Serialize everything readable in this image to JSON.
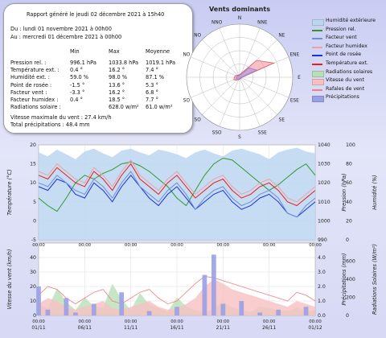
{
  "summary": {
    "report_title": "Rapport généré le jeudi 02 décembre 2021 à 15h40",
    "period_from": "Du : lundi 01 novembre 2021 à 00h00",
    "period_to": "Au : mercredi 01 décembre 2021 à 00h00",
    "col_min": "Min",
    "col_max": "Max",
    "col_avg": "Moyenne",
    "rows": [
      {
        "label": "Pression rel. :",
        "min": "996.1 hPa",
        "max": "1033.8 hPa",
        "avg": "1019.1 hPa"
      },
      {
        "label": "Température ext. :",
        "min": "0.4 °",
        "max": "16.2 °",
        "avg": "7.4 °"
      },
      {
        "label": "Humidité ext. :",
        "min": "59.0 %",
        "max": "98.0 %",
        "avg": "87.1 %"
      },
      {
        "label": "Point de rosée :",
        "min": "-1.5 °",
        "max": "13.6 °",
        "avg": "5.3 °"
      },
      {
        "label": "Facteur vent :",
        "min": "-3.3 °",
        "max": "16.2 °",
        "avg": "6.8 °"
      },
      {
        "label": "Facteur humidex :",
        "min": "0.4 °",
        "max": "18.5 °",
        "avg": "7.7 °"
      },
      {
        "label": "Radiations solaire :",
        "min": "",
        "max": "628.0 w/m²",
        "avg": "61.0 w/m²"
      }
    ],
    "wind_max": "Vitesse maximale du vent : 27.4 km/h",
    "total_precip": "Total précipitations : 48.4 mm"
  },
  "legend": [
    {
      "label": "Humidité extérieure",
      "color": "#bcd6f0",
      "kind": "area"
    },
    {
      "label": "Pression rel.",
      "color": "#2e9a2e",
      "kind": "line"
    },
    {
      "label": "Facteur vent",
      "color": "#6f8fd8",
      "kind": "line"
    },
    {
      "label": "Facteur humidex",
      "color": "#f0a0a8",
      "kind": "line"
    },
    {
      "label": "Point de rosée",
      "color": "#1a2fe0",
      "kind": "line"
    },
    {
      "label": "Température ext.",
      "color": "#ee1b1b",
      "kind": "line"
    },
    {
      "label": "Radiations solaires",
      "color": "#b8e0b8",
      "kind": "area"
    },
    {
      "label": "Vitesse du vent",
      "color": "#f7c0c0",
      "kind": "area"
    },
    {
      "label": "Rafales de vent",
      "color": "#f08080",
      "kind": "line"
    },
    {
      "label": "Précipitations",
      "color": "#9aa0e8",
      "kind": "area"
    }
  ],
  "chart_data": [
    {
      "type": "radar",
      "title": "Vents dominants",
      "directions": [
        "N",
        "NNE",
        "NE",
        "ENE",
        "E",
        "ESE",
        "SE",
        "SSE",
        "S",
        "SSO",
        "SO",
        "OSO",
        "O",
        "ONO",
        "NO",
        "NNO"
      ],
      "values": [
        0.05,
        0.08,
        0.45,
        0.7,
        0.05,
        0.04,
        0.03,
        0.03,
        0.04,
        0.05,
        0.08,
        0.12,
        0.1,
        0.08,
        0.06,
        0.05
      ],
      "values_secondary": [
        0.04,
        0.06,
        0.25,
        0.35,
        0.04,
        0.03,
        0.03,
        0.02,
        0.03,
        0.04,
        0.05,
        0.07,
        0.06,
        0.05,
        0.04,
        0.04
      ]
    },
    {
      "type": "line",
      "x_ticks": [
        "01/11",
        "06/11",
        "11/11",
        "16/11",
        "21/11",
        "26/11",
        "01/12"
      ],
      "y_left": {
        "label": "Température (°C)",
        "ylim": [
          -5,
          20
        ],
        "ticks": [
          "-5",
          "0",
          "5",
          "10",
          "15",
          "20"
        ]
      },
      "y_right1": {
        "label": "Pression (hPa)",
        "ylim": [
          990,
          1040
        ],
        "ticks": [
          "990",
          "1000",
          "1010",
          "1020",
          "1030",
          "1040"
        ]
      },
      "y_right2": {
        "label": "Humidité (%)",
        "ylim": [
          0,
          100
        ],
        "ticks": [
          "0",
          "20",
          "40",
          "60",
          "80",
          "100"
        ]
      },
      "series": [
        {
          "name": "Humidité extérieure",
          "axis": "y_right2",
          "values": [
            92,
            88,
            95,
            90,
            85,
            93,
            96,
            91,
            87,
            94,
            96,
            92,
            89,
            95,
            93,
            90,
            86,
            92,
            95,
            91,
            88,
            94,
            96,
            93,
            90,
            85,
            92,
            95,
            97,
            93,
            91
          ]
        },
        {
          "name": "Pression rel.",
          "axis": "y_right1",
          "values": [
            1012,
            1008,
            1005,
            1012,
            1020,
            1024,
            1022,
            1025,
            1027,
            1030,
            1031,
            1029,
            1026,
            1022,
            1018,
            1012,
            1008,
            1016,
            1024,
            1030,
            1033,
            1032,
            1028,
            1024,
            1020,
            1016,
            1019,
            1023,
            1027,
            1030,
            1024
          ]
        },
        {
          "name": "Température ext.",
          "axis": "y_left",
          "values": [
            12,
            11,
            14,
            12,
            10,
            9,
            13,
            11,
            8,
            12,
            15,
            11,
            9,
            7,
            10,
            12,
            9,
            6,
            8,
            10,
            11,
            8,
            6,
            7,
            9,
            10,
            8,
            5,
            4,
            6,
            8
          ]
        },
        {
          "name": "Point de rosée",
          "axis": "y_left",
          "values": [
            9,
            8,
            11,
            10,
            7,
            6,
            10,
            8,
            5,
            9,
            12,
            9,
            6,
            4,
            7,
            9,
            6,
            3,
            5,
            7,
            8,
            5,
            3,
            4,
            6,
            7,
            5,
            2,
            1,
            3,
            5
          ]
        },
        {
          "name": "Facteur vent",
          "axis": "y_left",
          "values": [
            10,
            9,
            12,
            10,
            8,
            7,
            11,
            9,
            6,
            10,
            13,
            9,
            7,
            5,
            8,
            10,
            7,
            3,
            6,
            8,
            9,
            6,
            4,
            5,
            7,
            8,
            6,
            2,
            1,
            4,
            6
          ]
        },
        {
          "name": "Facteur humidex",
          "axis": "y_left",
          "values": [
            13,
            12,
            15,
            13,
            11,
            10,
            14,
            12,
            9,
            13,
            16,
            12,
            10,
            8,
            11,
            13,
            10,
            7,
            9,
            11,
            12,
            9,
            7,
            8,
            10,
            11,
            9,
            6,
            5,
            7,
            9
          ]
        }
      ]
    },
    {
      "type": "bar",
      "x_ticks": [
        "01/11",
        "06/11",
        "11/11",
        "16/11",
        "21/11",
        "26/11",
        "01/12"
      ],
      "y_left": {
        "label": "Vitesse du vent (km/h)",
        "ylim": [
          0,
          50
        ],
        "ticks": [
          "0",
          "10",
          "20",
          "30",
          "40"
        ]
      },
      "y_right1": {
        "label": "Précipitations (mm)",
        "ylim": [
          0,
          5
        ],
        "ticks": [
          "0.0",
          "1.0",
          "2.0",
          "3.0",
          "4.0"
        ]
      },
      "y_right2": {
        "label": "Radiations Solaires (W/m²)",
        "ylim": [
          0,
          800
        ],
        "ticks": [
          "0",
          "200",
          "400",
          "600"
        ]
      },
      "series": [
        {
          "name": "Radiations solaires",
          "axis": "y_right2",
          "values": [
            120,
            80,
            300,
            150,
            60,
            200,
            100,
            90,
            350,
            180,
            60,
            250,
            120,
            80,
            40,
            200,
            100,
            60,
            30,
            80,
            150,
            90,
            60,
            40,
            100,
            80,
            60,
            50,
            90,
            40,
            60
          ]
        },
        {
          "name": "Vitesse du vent",
          "axis": "y_left",
          "values": [
            8,
            12,
            10,
            6,
            4,
            6,
            8,
            10,
            5,
            4,
            6,
            8,
            10,
            6,
            4,
            5,
            8,
            12,
            20,
            25,
            22,
            18,
            16,
            14,
            12,
            10,
            8,
            6,
            10,
            8,
            6
          ]
        },
        {
          "name": "Rafales de vent",
          "axis": "y_left",
          "values": [
            14,
            20,
            18,
            12,
            8,
            12,
            16,
            18,
            10,
            8,
            12,
            16,
            18,
            12,
            8,
            10,
            16,
            22,
            27,
            26,
            24,
            22,
            20,
            18,
            16,
            14,
            12,
            10,
            16,
            14,
            10
          ]
        },
        {
          "name": "Précipitations",
          "axis": "y_right1",
          "values": [
            2.0,
            0.4,
            0,
            1.2,
            0.2,
            0,
            0.8,
            0,
            0,
            1.6,
            0,
            0,
            0.3,
            0,
            0,
            0.6,
            0,
            0,
            2.8,
            4.2,
            0.8,
            0,
            1.0,
            0,
            0.2,
            0,
            0.4,
            0,
            0,
            0.6,
            0
          ]
        }
      ]
    }
  ]
}
